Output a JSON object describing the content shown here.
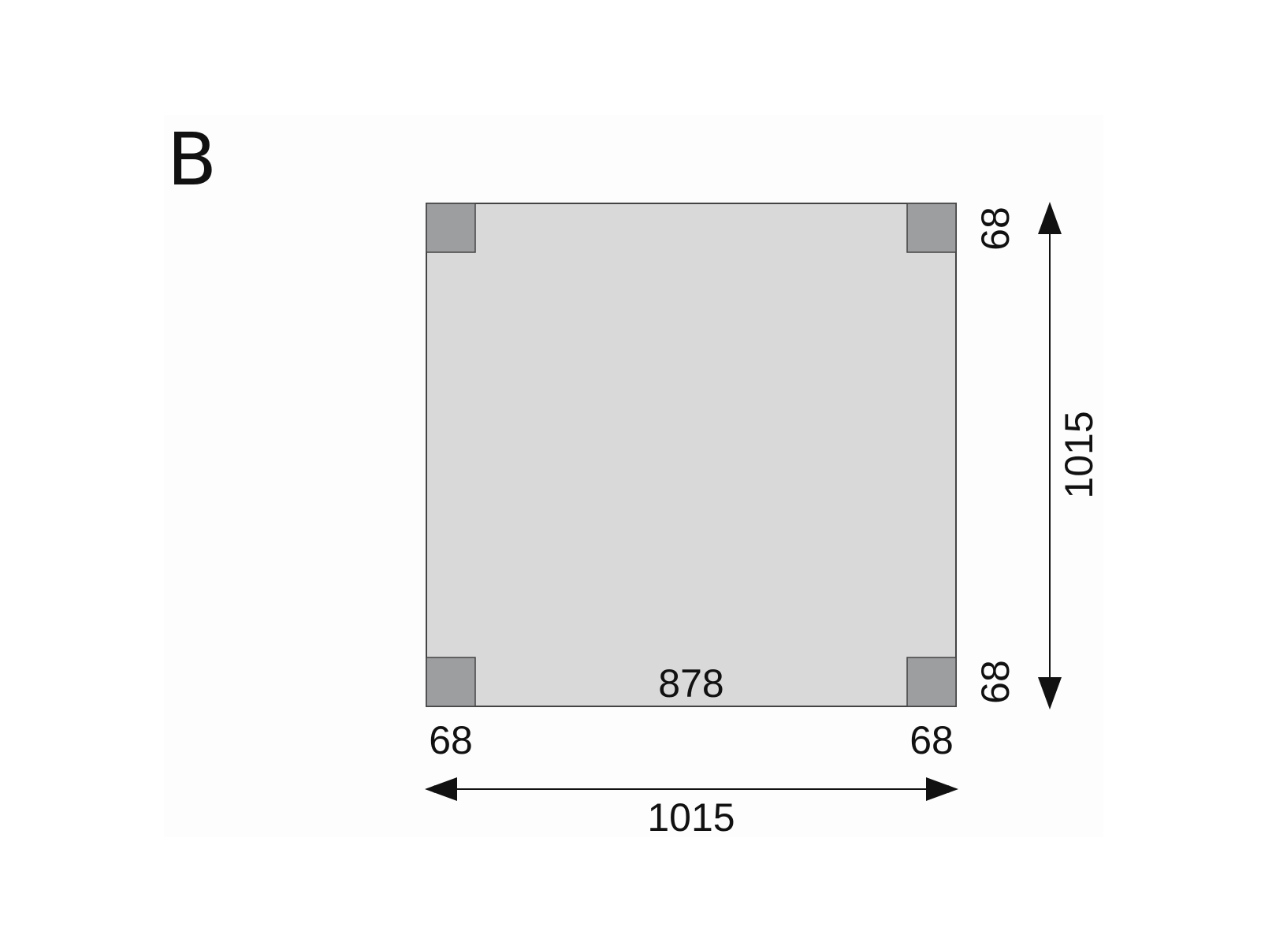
{
  "panel_label": "B",
  "colors": {
    "floor": "#d9d9da",
    "post": "#9d9e9f",
    "outline": "#444444",
    "arrow": "#111111"
  },
  "dimensions": {
    "inner_width": "878",
    "post_top_right": "68",
    "post_bottom_right": "68",
    "post_bottom_left": "68",
    "post_bottom_right_x": "68",
    "total_width": "1015",
    "total_depth": "1015"
  }
}
